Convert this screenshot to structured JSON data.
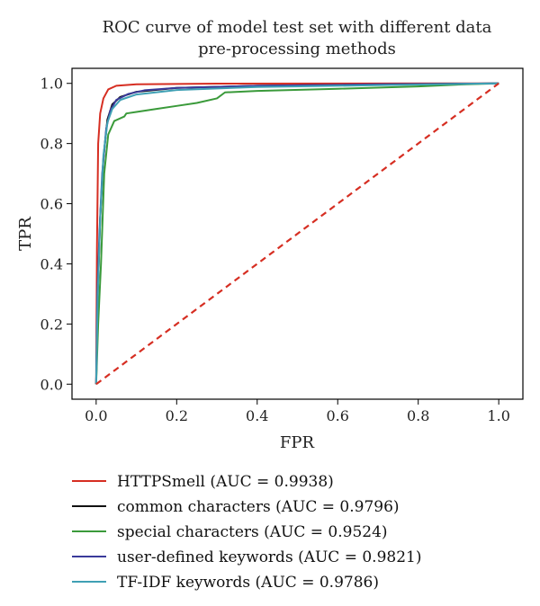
{
  "chart_data": {
    "type": "line",
    "title": [
      "ROC curve of model test set with different data",
      "pre-processing methods"
    ],
    "xlabel": "FPR",
    "ylabel": "TPR",
    "xlim": [
      -0.06,
      1.06
    ],
    "ylim": [
      -0.05,
      1.05
    ],
    "xticks": [
      0.0,
      0.2,
      0.4,
      0.6,
      0.8,
      1.0
    ],
    "yticks": [
      0.0,
      0.2,
      0.4,
      0.6,
      0.8,
      1.0
    ],
    "tick_labels_x": [
      "0.0",
      "0.2",
      "0.4",
      "0.6",
      "0.8",
      "1.0"
    ],
    "tick_labels_y": [
      "0.0",
      "0.2",
      "0.4",
      "0.6",
      "0.8",
      "1.0"
    ],
    "grid": false,
    "legend_position": "below",
    "series": [
      {
        "name": "HTTPSmell (AUC = 0.9938)",
        "color": "#d62e22",
        "style": "solid",
        "points": [
          [
            0,
            0
          ],
          [
            0.002,
            0.45
          ],
          [
            0.005,
            0.8
          ],
          [
            0.01,
            0.9
          ],
          [
            0.018,
            0.95
          ],
          [
            0.03,
            0.98
          ],
          [
            0.05,
            0.992
          ],
          [
            0.1,
            0.997
          ],
          [
            0.3,
            0.999
          ],
          [
            1.0,
            1.0
          ]
        ]
      },
      {
        "name": "common characters (AUC = 0.9796)",
        "color": "#111111",
        "style": "solid",
        "points": [
          [
            0,
            0
          ],
          [
            0.004,
            0.3
          ],
          [
            0.01,
            0.55
          ],
          [
            0.018,
            0.75
          ],
          [
            0.028,
            0.88
          ],
          [
            0.04,
            0.93
          ],
          [
            0.06,
            0.955
          ],
          [
            0.1,
            0.972
          ],
          [
            0.2,
            0.985
          ],
          [
            0.4,
            0.992
          ],
          [
            0.7,
            0.996
          ],
          [
            1.0,
            1.0
          ]
        ]
      },
      {
        "name": "special characters (AUC = 0.9524)",
        "color": "#3a9a3a",
        "style": "solid",
        "points": [
          [
            0,
            0
          ],
          [
            0.005,
            0.2
          ],
          [
            0.012,
            0.4
          ],
          [
            0.02,
            0.7
          ],
          [
            0.03,
            0.83
          ],
          [
            0.045,
            0.875
          ],
          [
            0.07,
            0.89
          ],
          [
            0.075,
            0.9
          ],
          [
            0.1,
            0.905
          ],
          [
            0.15,
            0.915
          ],
          [
            0.2,
            0.925
          ],
          [
            0.25,
            0.935
          ],
          [
            0.3,
            0.95
          ],
          [
            0.32,
            0.97
          ],
          [
            0.4,
            0.975
          ],
          [
            0.6,
            0.982
          ],
          [
            0.8,
            0.99
          ],
          [
            0.92,
            0.997
          ],
          [
            1.0,
            1.0
          ]
        ]
      },
      {
        "name": "user-defined keywords (AUC = 0.9821)",
        "color": "#3a3a9a",
        "style": "solid",
        "points": [
          [
            0,
            0
          ],
          [
            0.003,
            0.3
          ],
          [
            0.008,
            0.5
          ],
          [
            0.015,
            0.7
          ],
          [
            0.025,
            0.85
          ],
          [
            0.035,
            0.91
          ],
          [
            0.05,
            0.945
          ],
          [
            0.08,
            0.965
          ],
          [
            0.12,
            0.977
          ],
          [
            0.2,
            0.985
          ],
          [
            0.4,
            0.992
          ],
          [
            0.7,
            0.997
          ],
          [
            1.0,
            1.0
          ]
        ]
      },
      {
        "name": "TF-IDF keywords (AUC = 0.9786)",
        "color": "#3fa0b4",
        "style": "solid",
        "points": [
          [
            0,
            0
          ],
          [
            0.004,
            0.3
          ],
          [
            0.01,
            0.55
          ],
          [
            0.018,
            0.76
          ],
          [
            0.028,
            0.87
          ],
          [
            0.04,
            0.915
          ],
          [
            0.06,
            0.945
          ],
          [
            0.1,
            0.963
          ],
          [
            0.2,
            0.978
          ],
          [
            0.4,
            0.988
          ],
          [
            0.7,
            0.994
          ],
          [
            1.0,
            1.0
          ]
        ]
      },
      {
        "name": "",
        "color": "#d62e22",
        "style": "dashed",
        "points": [
          [
            0,
            0
          ],
          [
            1,
            1
          ]
        ]
      }
    ]
  }
}
